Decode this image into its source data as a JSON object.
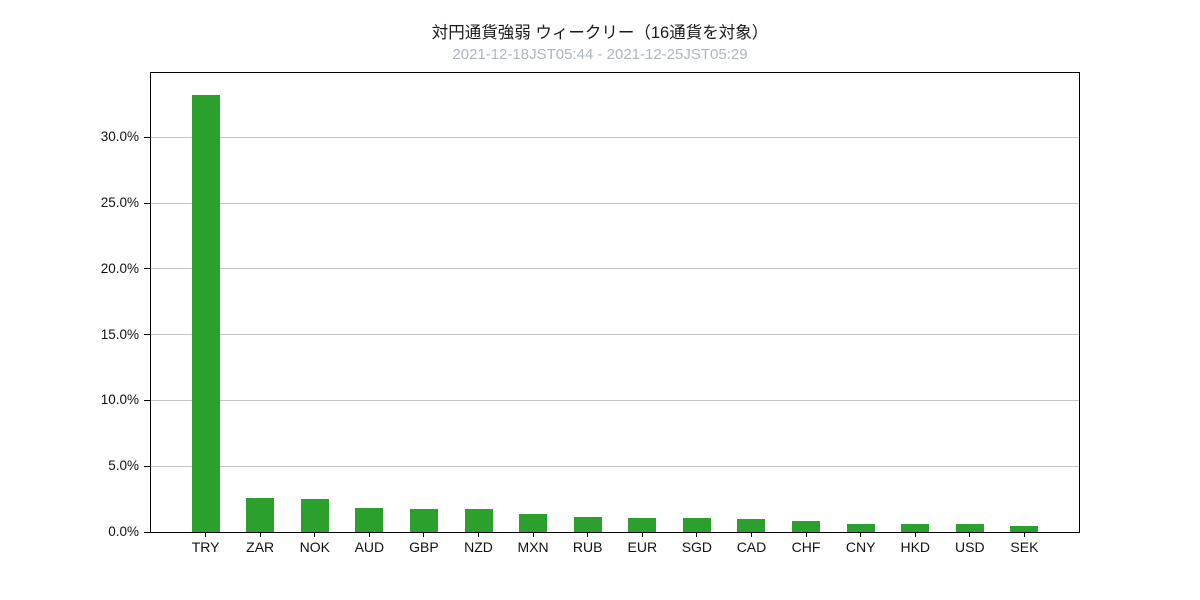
{
  "header": {
    "title": "対円通貨強弱 ウィークリー（16通貨を対象）",
    "subtitle": "2021-12-18JST05:44 - 2021-12-25JST05:29"
  },
  "colors": {
    "bar": "#2ca02c",
    "gridline": "#c3c3c3",
    "axis": "#000000",
    "title_text": "#1a1a1a",
    "subtitle_text": "#aeb6bf"
  },
  "chart_data": {
    "type": "bar",
    "title": "対円通貨強弱 ウィークリー（16通貨を対象）",
    "subtitle": "2021-12-18JST05:44 - 2021-12-25JST05:29",
    "categories": [
      "TRY",
      "ZAR",
      "NOK",
      "AUD",
      "GBP",
      "NZD",
      "MXN",
      "RUB",
      "EUR",
      "SGD",
      "CAD",
      "CHF",
      "CNY",
      "HKD",
      "USD",
      "SEK"
    ],
    "values": [
      33.2,
      2.62,
      2.52,
      1.86,
      1.73,
      1.72,
      1.38,
      1.16,
      1.1,
      1.09,
      1.01,
      0.86,
      0.63,
      0.6,
      0.58,
      0.48
    ],
    "value_unit": "%",
    "xlabel": "",
    "ylabel": "",
    "ylim": [
      0,
      34.9
    ],
    "yticks": [
      0,
      5,
      10,
      15,
      20,
      25,
      30
    ],
    "ytick_format": "one-decimal-percent",
    "grid": "horizontal",
    "legend_position": "none",
    "bar_color": "#2ca02c"
  }
}
